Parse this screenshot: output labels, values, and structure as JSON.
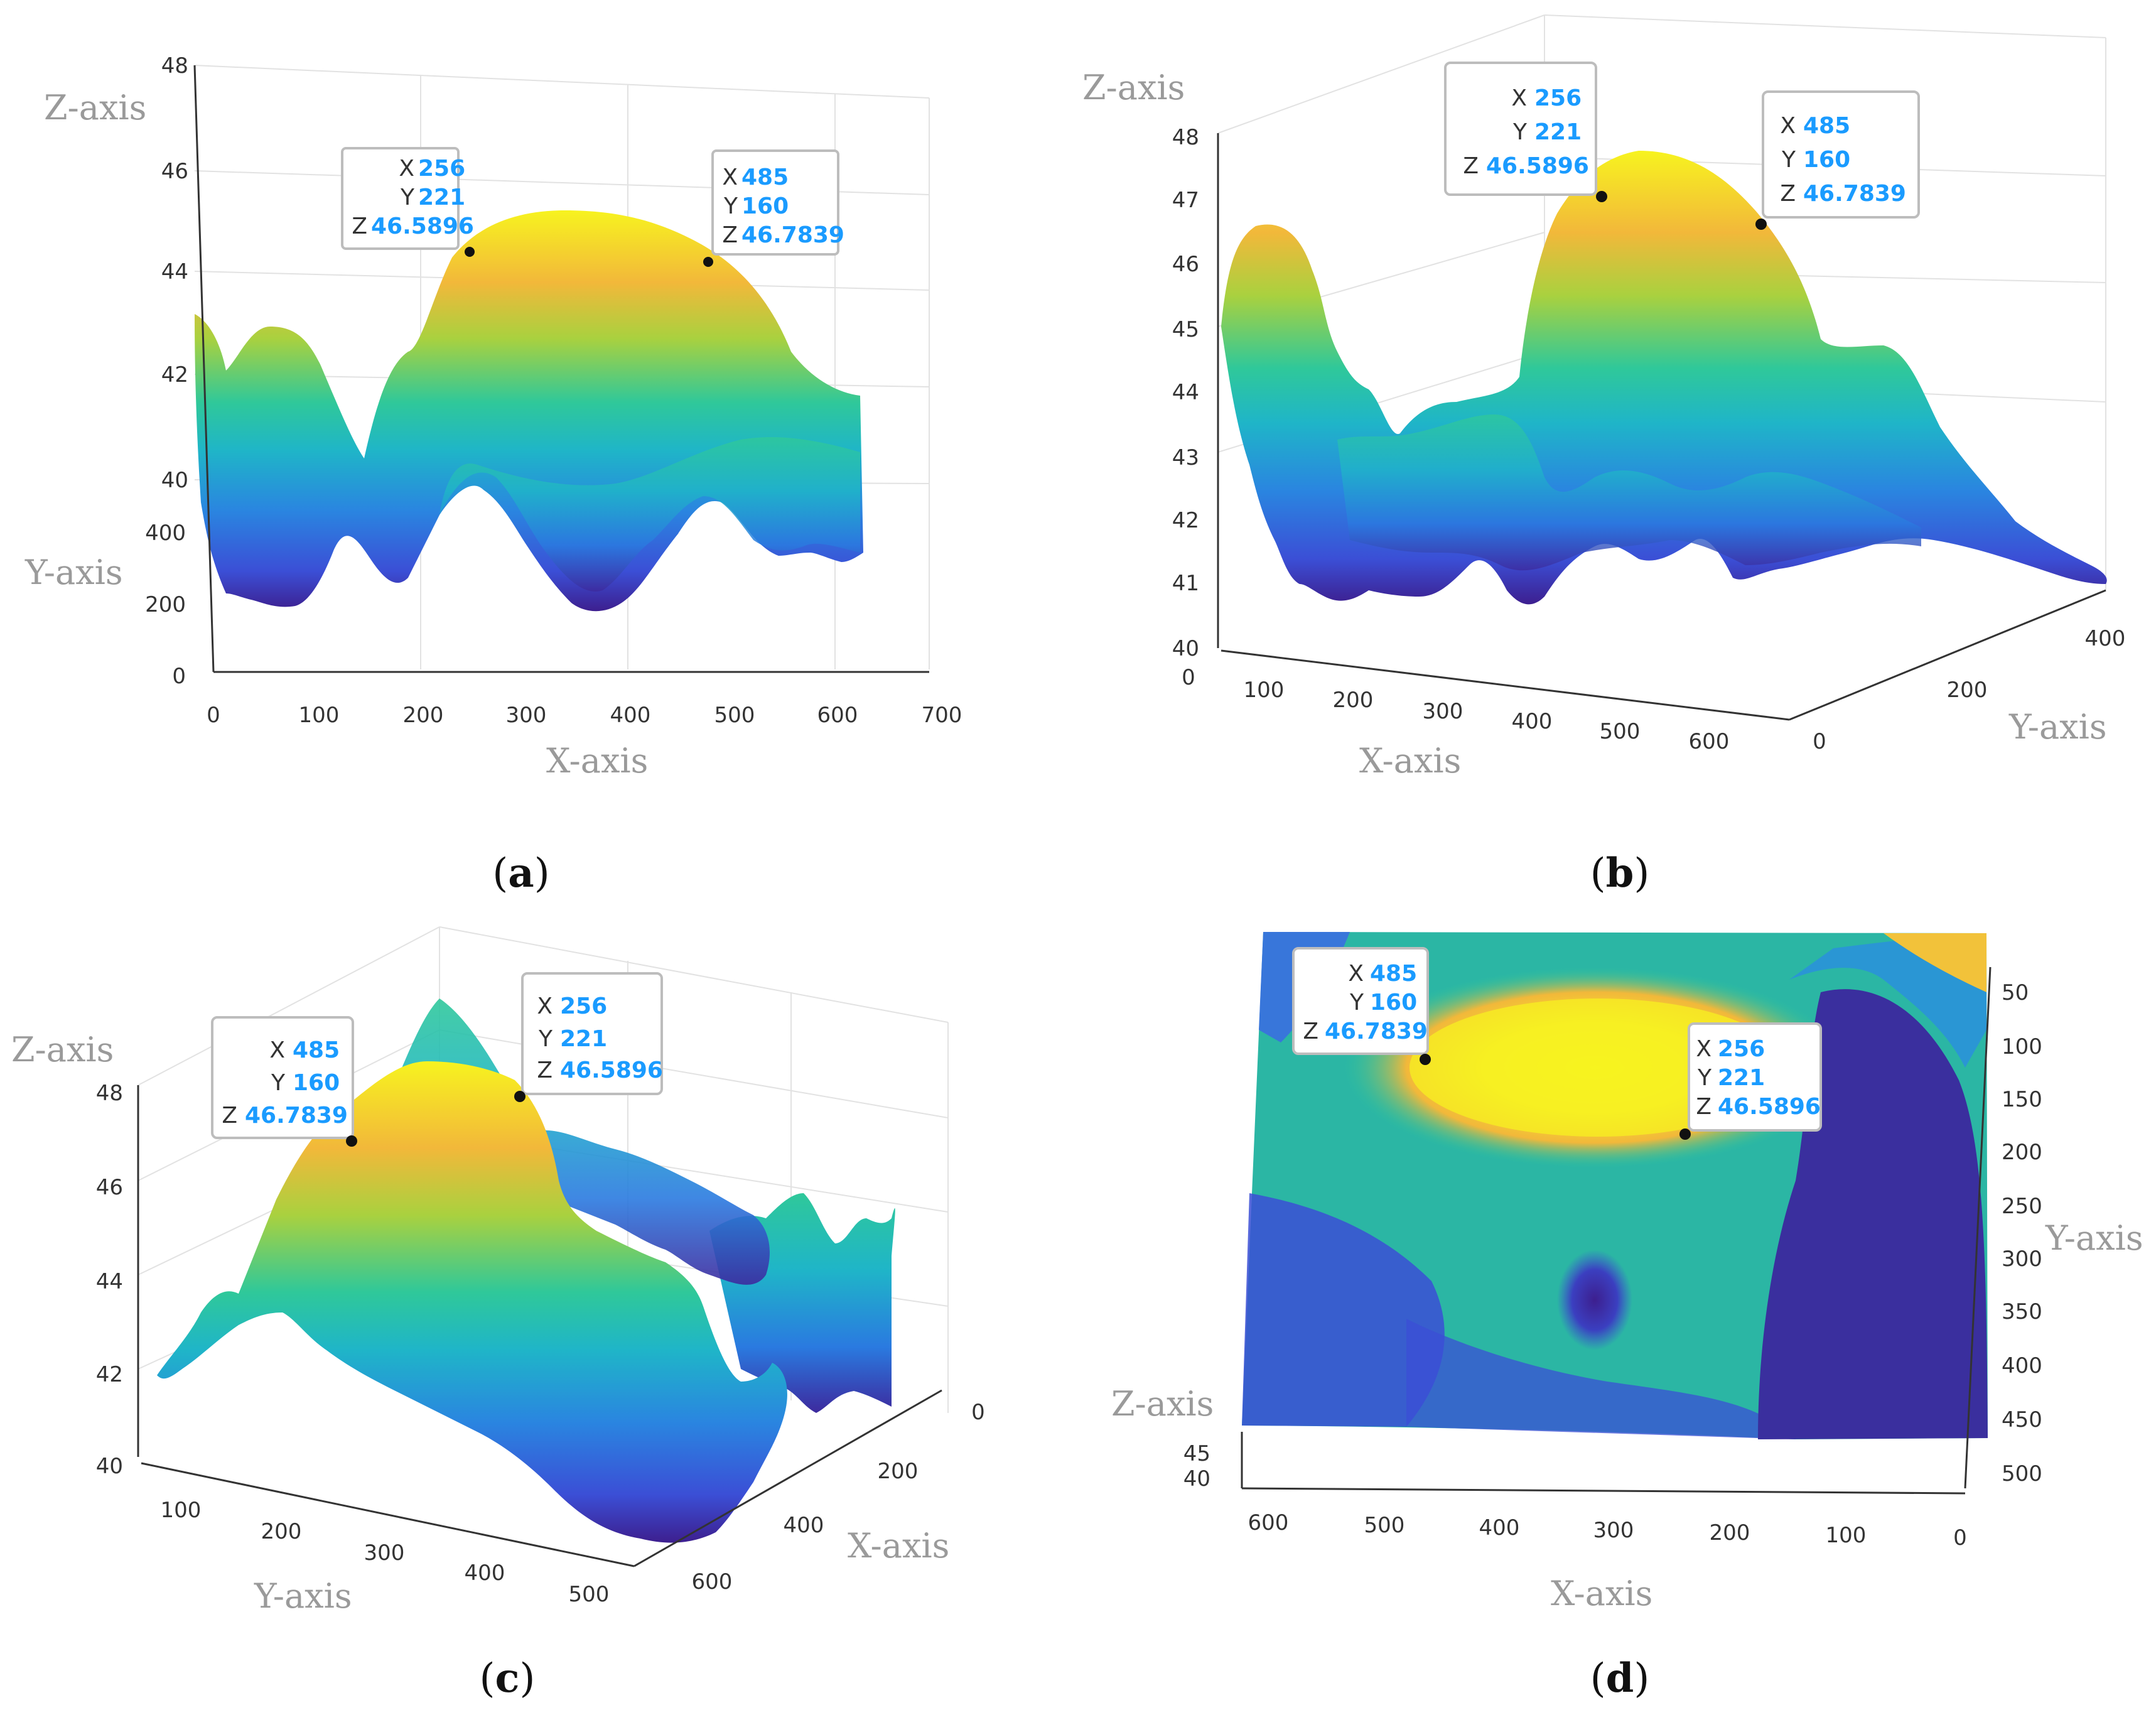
{
  "figure_labels": {
    "a": "a",
    "b": "b",
    "c": "c",
    "d": "d"
  },
  "colors": {
    "colormap": [
      "#3d1f8f",
      "#3b4fd6",
      "#1f8fe0",
      "#1fb5c8",
      "#2fc89a",
      "#8fd14f",
      "#f2d22e",
      "#f7f31f"
    ],
    "tooltip_value": "#1a9bff"
  },
  "chart_data": [
    {
      "id": "a",
      "type": "surface",
      "view": "front",
      "xlabel": "X-axis",
      "ylabel": "Y-axis",
      "zlabel": "Z-axis",
      "x_ticks": [
        "0",
        "100",
        "200",
        "300",
        "400",
        "500",
        "600",
        "700"
      ],
      "y_ticks": [
        "0",
        "200",
        "400"
      ],
      "z_ticks": [
        "40",
        "42",
        "44",
        "46",
        "48"
      ],
      "xlim": [
        0,
        700
      ],
      "ylim": [
        0,
        500
      ],
      "zlim": [
        40,
        48
      ],
      "datatips": [
        {
          "X": "256",
          "Y": "221",
          "Z": "46.5896"
        },
        {
          "X": "485",
          "Y": "160",
          "Z": "46.7839"
        }
      ]
    },
    {
      "id": "b",
      "type": "surface",
      "view": "3d",
      "xlabel": "X-axis",
      "ylabel": "Y-axis",
      "zlabel": "Z-axis",
      "x_ticks": [
        "0",
        "100",
        "200",
        "300",
        "400",
        "500",
        "600"
      ],
      "y_ticks": [
        "0",
        "200",
        "400"
      ],
      "z_ticks": [
        "40",
        "41",
        "42",
        "43",
        "44",
        "45",
        "46",
        "47",
        "48"
      ],
      "xlim": [
        0,
        650
      ],
      "ylim": [
        0,
        500
      ],
      "zlim": [
        40,
        48
      ],
      "datatips": [
        {
          "X": "256",
          "Y": "221",
          "Z": "46.5896"
        },
        {
          "X": "485",
          "Y": "160",
          "Z": "46.7839"
        }
      ]
    },
    {
      "id": "c",
      "type": "surface",
      "view": "3d-rotated",
      "xlabel": "X-axis",
      "ylabel": "Y-axis",
      "zlabel": "Z-axis",
      "x_ticks": [
        "0",
        "200",
        "400",
        "600"
      ],
      "y_ticks": [
        "100",
        "200",
        "300",
        "400",
        "500"
      ],
      "z_ticks": [
        "40",
        "42",
        "44",
        "46",
        "48"
      ],
      "xlim": [
        0,
        650
      ],
      "ylim": [
        50,
        520
      ],
      "zlim": [
        40,
        48
      ],
      "datatips": [
        {
          "X": "485",
          "Y": "160",
          "Z": "46.7839"
        },
        {
          "X": "256",
          "Y": "221",
          "Z": "46.5896"
        }
      ]
    },
    {
      "id": "d",
      "type": "surface",
      "view": "top",
      "xlabel": "X-axis",
      "ylabel": "Y-axis",
      "zlabel": "Z-axis",
      "x_ticks": [
        "600",
        "500",
        "400",
        "300",
        "200",
        "100",
        "0"
      ],
      "y_ticks": [
        "50",
        "100",
        "150",
        "200",
        "250",
        "300",
        "350",
        "400",
        "450",
        "500"
      ],
      "z_ticks": [
        "40",
        "45"
      ],
      "xlim": [
        0,
        650
      ],
      "ylim": [
        0,
        520
      ],
      "zlim": [
        40,
        48
      ],
      "datatips": [
        {
          "X": "485",
          "Y": "160",
          "Z": "46.7839"
        },
        {
          "X": "256",
          "Y": "221",
          "Z": "46.5896"
        }
      ]
    }
  ]
}
